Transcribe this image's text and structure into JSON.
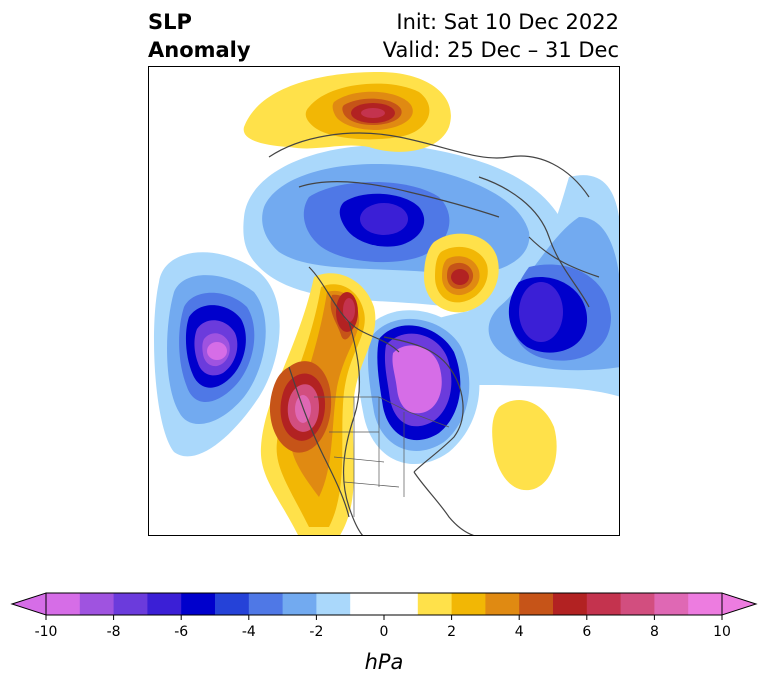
{
  "title": {
    "left_line1": "SLP",
    "left_line2": "Anomaly",
    "right_line1": "Init: Sat 10 Dec 2022",
    "right_line2": "Valid: 25 Dec – 31 Dec"
  },
  "map": {
    "projection": "polar stereographic (North America / Arctic)",
    "coastline_color": "#444444"
  },
  "colorbar": {
    "label": "hPa",
    "ticks": [
      "-10",
      "-8",
      "-6",
      "-4",
      "-2",
      "0",
      "2",
      "4",
      "6",
      "8",
      "10"
    ],
    "min": -10,
    "max": 10,
    "colors": [
      "#d66de7",
      "#9f53e0",
      "#6b3bdc",
      "#3b1fd6",
      "#0000cc",
      "#2542d8",
      "#4f78e6",
      "#72aaf0",
      "#aad8fb",
      "#ffffff",
      "#ffffff",
      "#ffe14a",
      "#f2b705",
      "#e08a12",
      "#c65418",
      "#b22222",
      "#c4334e",
      "#d24e7f",
      "#df68b4",
      "#ed7ce0"
    ]
  }
}
